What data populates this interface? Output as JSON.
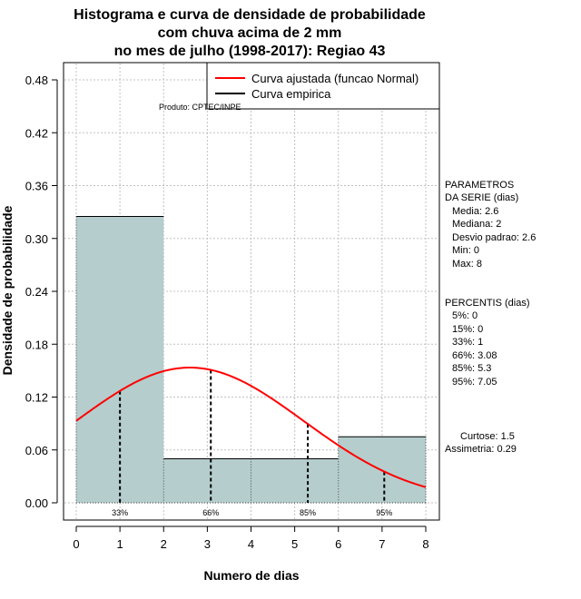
{
  "chart_data": {
    "type": "bar",
    "title": [
      "Histograma e curva de densidade de probabilidade",
      "com chuva acima de 2 mm",
      "no mes de julho (1998-2017): Regiao 43"
    ],
    "xlabel": "Numero de dias",
    "ylabel": "Densidade de probabilidade",
    "xlim": [
      0,
      8
    ],
    "ylim": [
      0,
      0.48
    ],
    "x_ticks": [
      0,
      1,
      2,
      3,
      4,
      5,
      6,
      7,
      8
    ],
    "y_ticks": [
      0.0,
      0.06,
      0.12,
      0.18,
      0.24,
      0.3,
      0.36,
      0.42,
      0.48
    ],
    "y_tick_labels": [
      "0.00",
      "0.06",
      "0.12",
      "0.18",
      "0.24",
      "0.30",
      "0.36",
      "0.42",
      "0.48"
    ],
    "grid": true,
    "histogram": {
      "bins": [
        [
          0,
          2
        ],
        [
          2,
          4
        ],
        [
          4,
          6
        ],
        [
          6,
          8
        ]
      ],
      "densities": [
        0.325,
        0.05,
        0.05,
        0.075
      ],
      "color": "#b5cdcd"
    },
    "normal_curve": {
      "mean": 2.6,
      "sd": 2.6,
      "color": "#ff0000",
      "name": "Curva ajustada (funcao Normal)"
    },
    "empirical_curve": {
      "color": "#000000",
      "name": "Curva empirica"
    },
    "percentile_markers": [
      {
        "x": 1,
        "label": "33%"
      },
      {
        "x": 3.08,
        "label": "66%"
      },
      {
        "x": 5.3,
        "label": "85%"
      },
      {
        "x": 7.05,
        "label": "95%"
      }
    ],
    "legend": {
      "position": "top-right",
      "entries": [
        "Curva ajustada (funcao Normal)",
        "Curva empirica"
      ]
    },
    "product": "Produto: CPTEC/INPE",
    "parametros": {
      "header": [
        "PARAMETROS",
        "DA SERIE (dias)"
      ],
      "items": [
        "Media: 2.6",
        "Mediana: 2",
        "Desvio padrao: 2.6",
        "Min: 0",
        "Max: 8"
      ]
    },
    "percentis": {
      "header": "PERCENTIS (dias)",
      "items": [
        "5%: 0",
        "15%: 0",
        "33%: 1",
        "66%: 3.08",
        "85%: 5.3",
        "95%: 7.05"
      ]
    },
    "shape": [
      "Curtose: 1.5",
      "Assimetria: 0.29"
    ]
  }
}
